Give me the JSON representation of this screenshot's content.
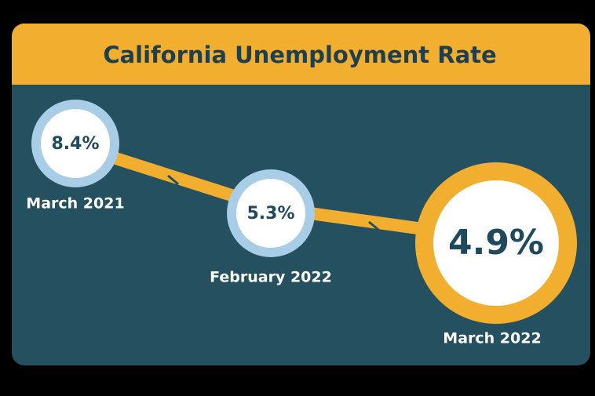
{
  "title": "California Unemployment Rate",
  "items": [
    {
      "value": "8.4%",
      "date": "March 2021"
    },
    {
      "value": "5.3%",
      "date": "February 2022"
    },
    {
      "value": "4.9%",
      "date": "March 2022"
    }
  ]
}
